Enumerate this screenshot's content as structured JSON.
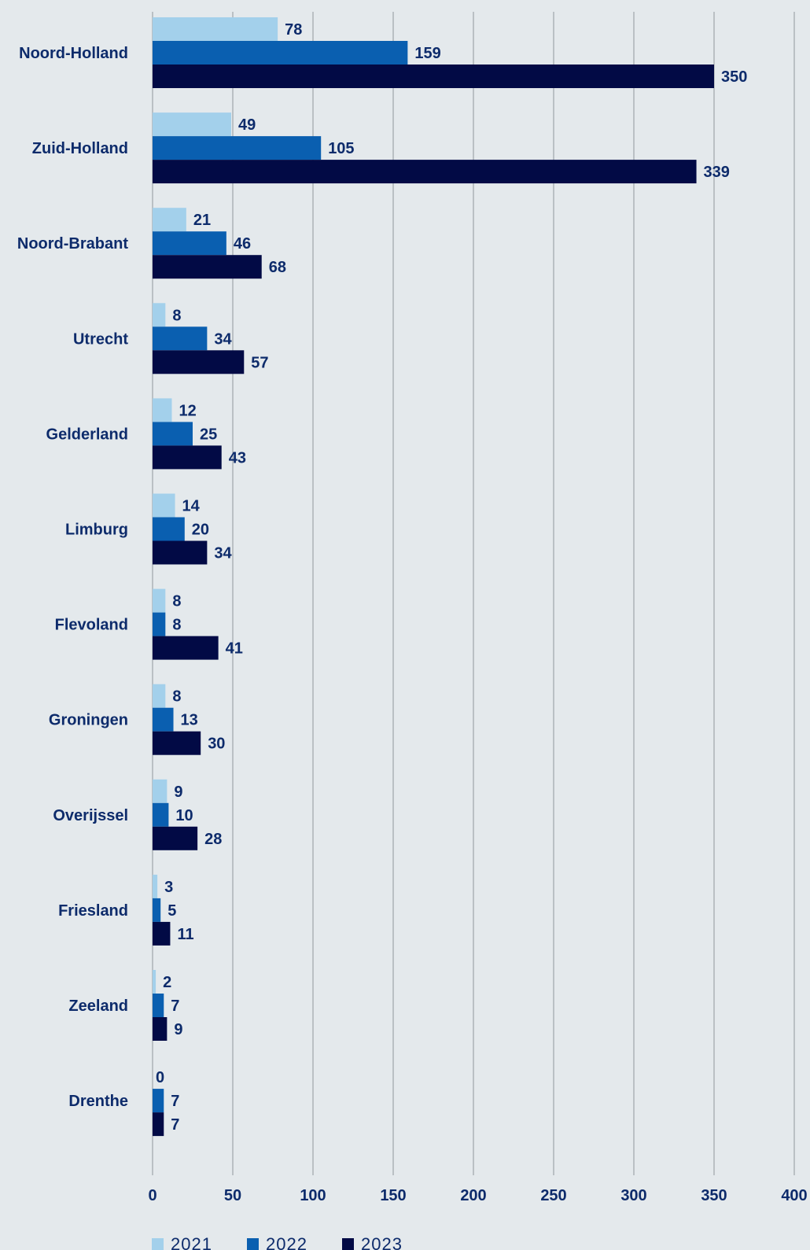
{
  "chart_data": {
    "type": "bar",
    "orientation": "horizontal",
    "categories": [
      "Noord-Holland",
      "Zuid-Holland",
      "Noord-Brabant",
      "Utrecht",
      "Gelderland",
      "Limburg",
      "Flevoland",
      "Groningen",
      "Overijssel",
      "Friesland",
      "Zeeland",
      "Drenthe"
    ],
    "series": [
      {
        "name": "2021",
        "color": "#a3d0eb",
        "values": [
          78,
          49,
          21,
          8,
          12,
          14,
          8,
          8,
          9,
          3,
          2,
          0
        ]
      },
      {
        "name": "2022",
        "color": "#0a5fb0",
        "values": [
          159,
          105,
          46,
          34,
          25,
          20,
          8,
          13,
          10,
          5,
          7,
          7
        ]
      },
      {
        "name": "2023",
        "color": "#020a45",
        "values": [
          350,
          339,
          68,
          57,
          43,
          34,
          41,
          30,
          28,
          11,
          9,
          7
        ]
      }
    ],
    "xlim": [
      0,
      400
    ],
    "xticks": [
      0,
      50,
      100,
      150,
      200,
      250,
      300,
      350,
      400
    ],
    "grid": "vertical",
    "legend": "bottom-left",
    "title": "",
    "xlabel": "",
    "ylabel": ""
  }
}
